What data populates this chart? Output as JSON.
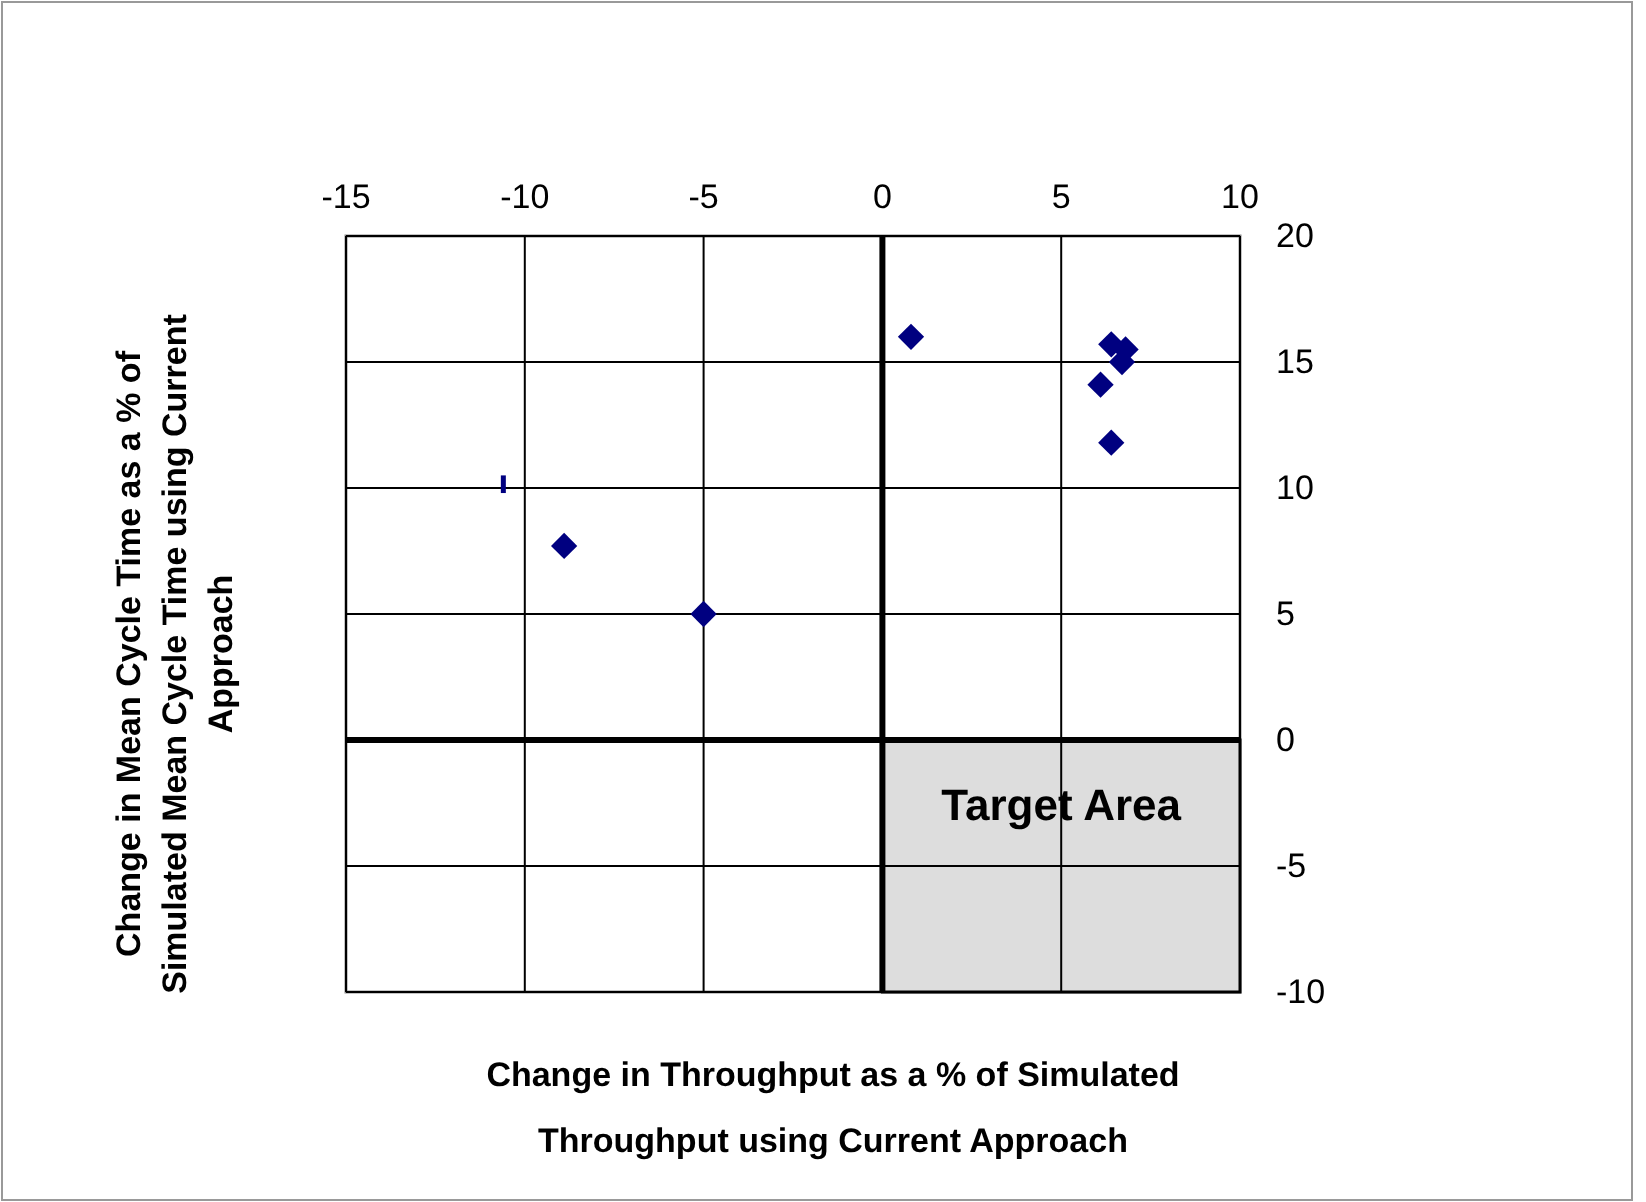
{
  "chart_data": {
    "type": "scatter",
    "xlabel": "Change in Throughput as a %  of Simulated Throughput using Current Approach",
    "ylabel": "Change in Mean Cycle Time as a % of Simulated Mean Cycle Time using Current Approach",
    "xlim": [
      -15,
      10
    ],
    "xticks": [
      -15,
      -10,
      -5,
      0,
      5,
      10
    ],
    "ylim": [
      -10,
      20
    ],
    "yticks": [
      -10,
      -5,
      0,
      5,
      10,
      15,
      20
    ],
    "grid": true,
    "legend": false,
    "series": [
      {
        "type": "area",
        "color": "#dddddd",
        "x": [
          0,
          10
        ],
        "values": [
          -10,
          -10
        ]
      },
      {
        "color": "#000080",
        "marker": "diamond",
        "x": [
          0.8,
          6.4,
          6.8,
          6.7,
          6.1,
          6.4,
          -8.9,
          -5
        ],
        "values": [
          16.0,
          15.7,
          15.5,
          15.0,
          14.1,
          11.8,
          7.7,
          5.0
        ]
      },
      {
        "type": "line",
        "color": "#000080",
        "x": [
          -10.6,
          -10.6
        ],
        "values": [
          9.8,
          10.5
        ]
      }
    ],
    "annotations": [
      "Target Area"
    ]
  }
}
